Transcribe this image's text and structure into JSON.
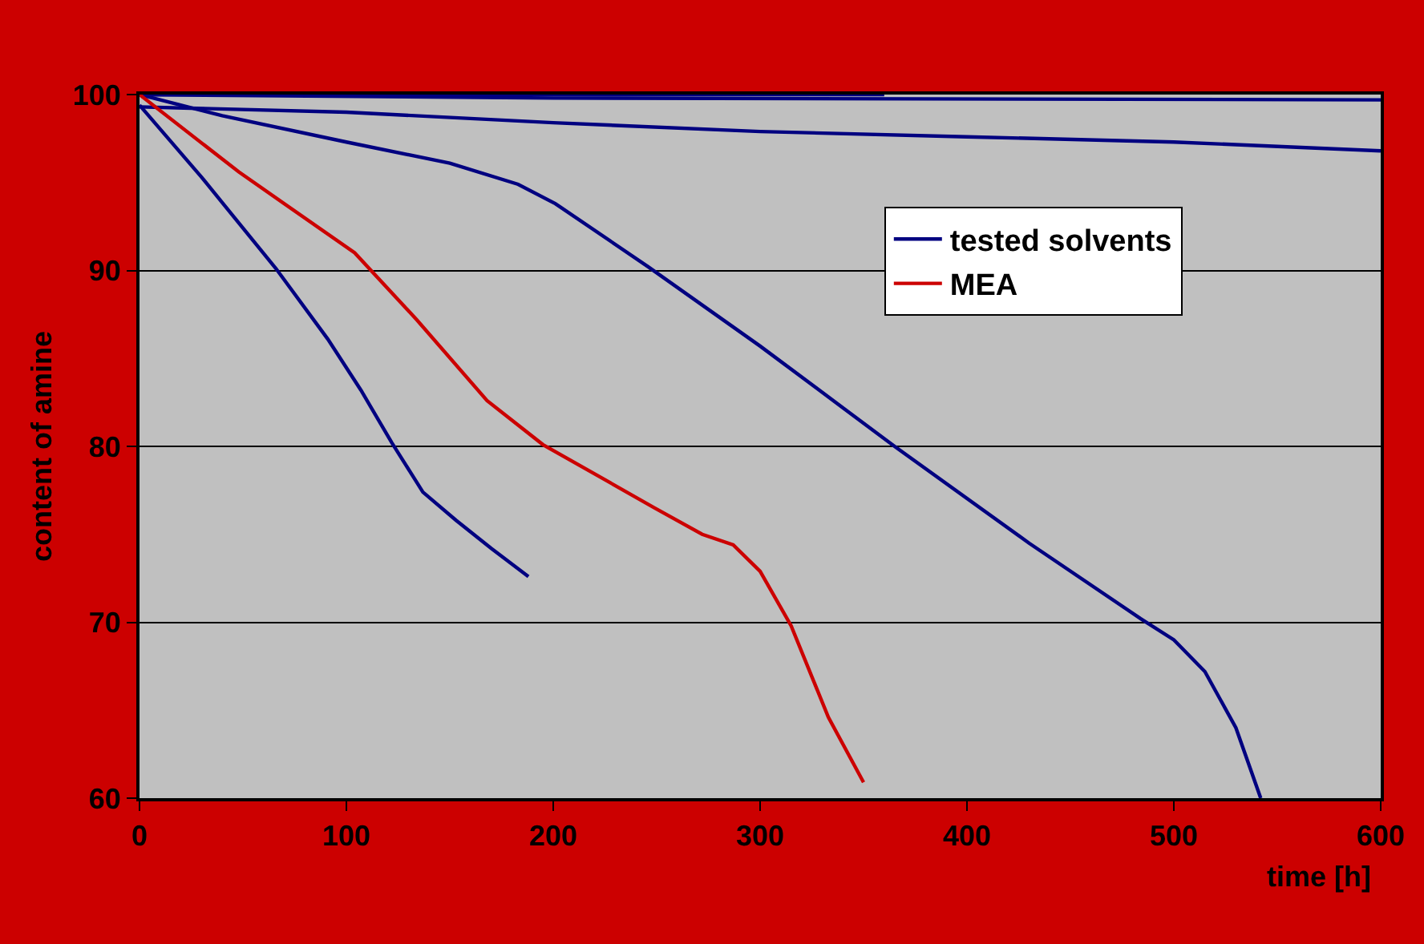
{
  "chart_data": {
    "type": "line",
    "xlabel": "time [h]",
    "ylabel": "content of amine",
    "xlim": [
      0,
      600
    ],
    "xticks": [
      0,
      100,
      200,
      300,
      400,
      500,
      600
    ],
    "ylim": [
      60,
      100
    ],
    "yticks": [
      60,
      70,
      80,
      90,
      100
    ],
    "grid": "y",
    "legend": "top right",
    "line_style": "solid",
    "marker": "none",
    "series": [
      {
        "name": "tested solvents",
        "color": "#000080",
        "x": [
          0,
          40,
          100,
          150,
          183,
          201,
          246,
          300,
          365,
          430,
          484,
          500,
          515,
          530,
          542
        ],
        "values": [
          100,
          98.8,
          97.3,
          96.1,
          94.9,
          93.8,
          90.2,
          85.7,
          80.0,
          74.5,
          70.2,
          69.0,
          67.2,
          64.0,
          60.0
        ]
      },
      {
        "color": "#000080",
        "x": [
          0,
          360
        ],
        "values": [
          100,
          100
        ]
      },
      {
        "color": "#000080",
        "x": [
          0,
          200,
          600
        ],
        "values": [
          100,
          99.8,
          99.7
        ]
      },
      {
        "color": "#000080",
        "x": [
          0,
          100,
          200,
          300,
          400,
          500,
          600
        ],
        "values": [
          99.3,
          99.0,
          98.4,
          97.9,
          97.6,
          97.3,
          96.8
        ]
      },
      {
        "color": "#000080",
        "x": [
          0,
          30,
          66,
          91,
          107,
          122,
          137,
          153,
          170,
          188
        ],
        "values": [
          99.4,
          95.3,
          90.1,
          86.1,
          83.2,
          80.2,
          77.4,
          75.8,
          74.2,
          72.6
        ]
      },
      {
        "name": "MEA",
        "color": "#cc0000",
        "x": [
          0,
          48,
          104,
          134,
          168,
          195,
          249,
          272,
          287,
          300,
          315,
          333,
          350
        ],
        "values": [
          100,
          95.6,
          91.0,
          87.2,
          82.6,
          80.1,
          76.5,
          75.0,
          74.4,
          72.9,
          69.8,
          64.6,
          60.9
        ]
      }
    ]
  }
}
